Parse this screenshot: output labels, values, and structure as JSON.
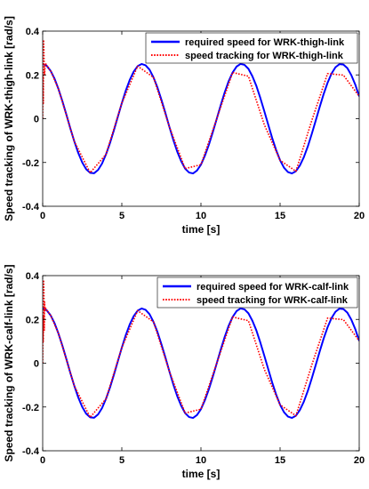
{
  "chart_data": [
    {
      "type": "line",
      "title": "",
      "xlabel": "time [s]",
      "ylabel": "Speed tracking of WRK-thigh-link [rad/s]",
      "xlim": [
        0,
        20
      ],
      "ylim": [
        -0.4,
        0.4
      ],
      "xticks": [
        0,
        5,
        10,
        15,
        20
      ],
      "yticks": [
        -0.4,
        -0.2,
        0,
        0.2,
        0.4
      ],
      "ytick_labels": [
        "-0.4",
        "-0.2",
        "0",
        "0.2",
        "0.4"
      ],
      "grid": false,
      "legend_position": "top-right",
      "series": [
        {
          "name": "required speed for WRK-thigh-link",
          "style": "solid",
          "color": "#0000ff",
          "x": [
            0,
            0.25,
            0.5,
            0.75,
            1,
            1.25,
            1.5,
            1.75,
            2,
            2.25,
            2.5,
            2.75,
            3,
            3.25,
            3.5,
            3.75,
            4,
            4.25,
            4.5,
            4.75,
            5,
            5.25,
            5.5,
            5.75,
            6,
            6.25,
            6.5,
            6.75,
            7,
            7.25,
            7.5,
            7.75,
            8,
            8.25,
            8.5,
            8.75,
            9,
            9.25,
            9.5,
            9.75,
            10,
            10.25,
            10.5,
            10.75,
            11,
            11.25,
            11.5,
            11.75,
            12,
            12.25,
            12.5,
            12.75,
            13,
            13.25,
            13.5,
            13.75,
            14,
            14.25,
            14.5,
            14.75,
            15,
            15.25,
            15.5,
            15.75,
            16,
            16.25,
            16.5,
            16.75,
            17,
            17.25,
            17.5,
            17.75,
            18,
            18.25,
            18.5,
            18.75,
            19,
            19.25,
            19.5,
            19.75,
            20
          ],
          "values": [
            0.25,
            0.242,
            0.219,
            0.183,
            0.135,
            0.079,
            0.018,
            -0.045,
            -0.104,
            -0.157,
            -0.2,
            -0.231,
            -0.247,
            -0.249,
            -0.234,
            -0.205,
            -0.163,
            -0.112,
            -0.053,
            0.009,
            0.071,
            0.128,
            0.177,
            0.215,
            0.24,
            0.25,
            0.244,
            0.224,
            0.189,
            0.143,
            0.087,
            0.027,
            -0.036,
            -0.096,
            -0.15,
            -0.194,
            -0.228,
            -0.246,
            -0.25,
            -0.237,
            -0.21,
            -0.169,
            -0.119,
            -0.061,
            0,
            0.062,
            0.12,
            0.171,
            0.211,
            0.238,
            0.25,
            0.246,
            0.228,
            0.194,
            0.15,
            0.095,
            0.035,
            -0.027,
            -0.088,
            -0.143,
            -0.19,
            -0.224,
            -0.244,
            -0.25,
            -0.24,
            -0.214,
            -0.176,
            -0.127,
            -0.07,
            -0.009,
            0.053,
            0.112,
            0.164,
            0.206,
            0.235,
            0.249,
            0.247,
            0.231,
            0.199,
            0.156,
            0.102
          ]
        },
        {
          "name": "speed tracking for WRK-thigh-link",
          "style": "dotted",
          "color": "#ff0000",
          "x": [
            0,
            0.02,
            0.04,
            0.06,
            0.08,
            0.1,
            0.12,
            0.15,
            0.2,
            0.3,
            0.5,
            1,
            2,
            3,
            4,
            5,
            6,
            7,
            8,
            9,
            10,
            11,
            12,
            13,
            14,
            15,
            16,
            17,
            18,
            19,
            20
          ],
          "values": [
            0,
            0.2,
            0.07,
            0.36,
            0.3,
            0.23,
            0.2,
            0.25,
            0.25,
            0.239,
            0.219,
            0.135,
            -0.104,
            -0.247,
            -0.163,
            0.071,
            0.24,
            0.189,
            -0.036,
            -0.228,
            -0.21,
            0,
            0.211,
            0.194,
            -0.027,
            -0.19,
            -0.24,
            -0.009,
            0.206,
            0.199,
            0.102
          ]
        }
      ]
    },
    {
      "type": "line",
      "title": "",
      "xlabel": "time [s]",
      "ylabel": "Speed tracking of WRK-calf-link [rad/s]",
      "xlim": [
        0,
        20
      ],
      "ylim": [
        -0.4,
        0.4
      ],
      "xticks": [
        0,
        5,
        10,
        15,
        20
      ],
      "yticks": [
        -0.4,
        -0.2,
        0,
        0.2,
        0.4
      ],
      "ytick_labels": [
        "-0.4",
        "-0.2",
        "0",
        "0.2",
        "0.4"
      ],
      "grid": false,
      "legend_position": "top-right",
      "series": [
        {
          "name": "required speed for WRK-calf-link",
          "style": "solid",
          "color": "#0000ff",
          "x": [
            0,
            0.25,
            0.5,
            0.75,
            1,
            1.25,
            1.5,
            1.75,
            2,
            2.25,
            2.5,
            2.75,
            3,
            3.25,
            3.5,
            3.75,
            4,
            4.25,
            4.5,
            4.75,
            5,
            5.25,
            5.5,
            5.75,
            6,
            6.25,
            6.5,
            6.75,
            7,
            7.25,
            7.5,
            7.75,
            8,
            8.25,
            8.5,
            8.75,
            9,
            9.25,
            9.5,
            9.75,
            10,
            10.25,
            10.5,
            10.75,
            11,
            11.25,
            11.5,
            11.75,
            12,
            12.25,
            12.5,
            12.75,
            13,
            13.25,
            13.5,
            13.75,
            14,
            14.25,
            14.5,
            14.75,
            15,
            15.25,
            15.5,
            15.75,
            16,
            16.25,
            16.5,
            16.75,
            17,
            17.25,
            17.5,
            17.75,
            18,
            18.25,
            18.5,
            18.75,
            19,
            19.25,
            19.5,
            19.75,
            20
          ],
          "values": [
            0.25,
            0.242,
            0.219,
            0.183,
            0.135,
            0.079,
            0.018,
            -0.045,
            -0.104,
            -0.157,
            -0.2,
            -0.231,
            -0.247,
            -0.249,
            -0.234,
            -0.205,
            -0.163,
            -0.112,
            -0.053,
            0.009,
            0.071,
            0.128,
            0.177,
            0.215,
            0.24,
            0.25,
            0.244,
            0.224,
            0.189,
            0.143,
            0.087,
            0.027,
            -0.036,
            -0.096,
            -0.15,
            -0.194,
            -0.228,
            -0.246,
            -0.25,
            -0.237,
            -0.21,
            -0.169,
            -0.119,
            -0.061,
            0,
            0.062,
            0.12,
            0.171,
            0.211,
            0.238,
            0.25,
            0.246,
            0.228,
            0.194,
            0.15,
            0.095,
            0.035,
            -0.027,
            -0.088,
            -0.143,
            -0.19,
            -0.224,
            -0.244,
            -0.25,
            -0.24,
            -0.214,
            -0.176,
            -0.127,
            -0.07,
            -0.009,
            0.053,
            0.112,
            0.164,
            0.206,
            0.235,
            0.249,
            0.247,
            0.231,
            0.199,
            0.156,
            0.102
          ]
        },
        {
          "name": "speed tracking for WRK-calf-link",
          "style": "dotted",
          "color": "#ff0000",
          "x": [
            0,
            0.02,
            0.04,
            0.06,
            0.08,
            0.1,
            0.12,
            0.15,
            0.2,
            0.3,
            0.5,
            1,
            2,
            3,
            4,
            5,
            6,
            7,
            8,
            9,
            10,
            11,
            12,
            13,
            14,
            15,
            16,
            17,
            18,
            19,
            20
          ],
          "values": [
            0,
            0.22,
            0.1,
            0.38,
            0.32,
            0.15,
            0.28,
            0.24,
            0.25,
            0.239,
            0.219,
            0.135,
            -0.104,
            -0.247,
            -0.163,
            0.071,
            0.24,
            0.189,
            -0.036,
            -0.228,
            -0.21,
            0,
            0.211,
            0.194,
            -0.027,
            -0.19,
            -0.24,
            -0.009,
            0.206,
            0.199,
            0.102
          ]
        }
      ]
    }
  ]
}
